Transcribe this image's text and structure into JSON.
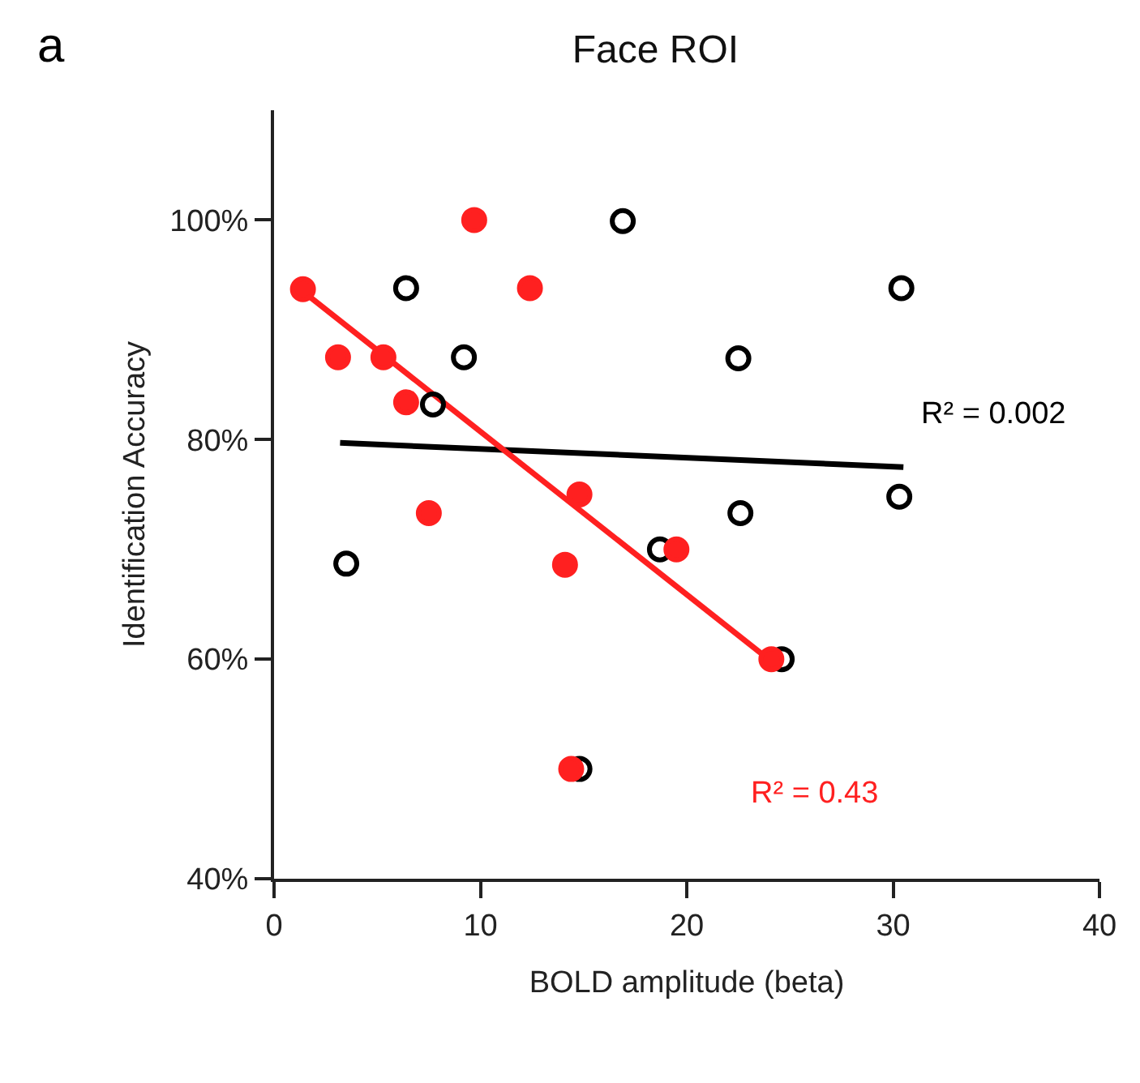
{
  "chart_data": {
    "type": "scatter",
    "title": "Face ROI",
    "xlabel": "BOLD amplitude (beta)",
    "ylabel": "Identification Accuracy",
    "annotations": [
      "a",
      "R² = 0.002",
      "R² = 0.43"
    ],
    "xlim": [
      0,
      40
    ],
    "xticks": [
      0,
      10,
      20,
      30,
      40
    ],
    "ylim": [
      40,
      110
    ],
    "yticks": [
      {
        "value": 40,
        "label": "40%"
      },
      {
        "value": 60,
        "label": "60%"
      },
      {
        "value": 80,
        "label": "80%"
      },
      {
        "value": 100,
        "label": "100%"
      }
    ],
    "grid": false,
    "series": [
      {
        "color": "#000000",
        "marker": "circle-open",
        "x": [
          6.4,
          16.9,
          30.4,
          9.2,
          22.5,
          7.7,
          30.3,
          22.6,
          3.5,
          18.7,
          24.6,
          14.8
        ],
        "values": [
          93.8,
          99.9,
          93.8,
          87.5,
          87.4,
          83.2,
          74.8,
          73.3,
          68.7,
          70,
          60,
          50
        ]
      },
      {
        "color": "#ff2020",
        "marker": "circle",
        "x": [
          1.4,
          9.7,
          12.4,
          3.1,
          5.3,
          6.4,
          7.5,
          14.8,
          14.1,
          19.5,
          24.1,
          14.4
        ],
        "values": [
          93.7,
          100,
          93.8,
          87.5,
          87.5,
          83.4,
          73.3,
          75,
          68.6,
          70,
          60,
          50
        ]
      },
      {
        "type": "line",
        "color": "#000000",
        "marker": "none",
        "x": [
          3.2,
          30.5
        ],
        "values": [
          79.7,
          77.5
        ]
      },
      {
        "type": "line",
        "color": "#ff2020",
        "marker": "none",
        "x": [
          1.4,
          24.3
        ],
        "values": [
          93.5,
          59.5
        ]
      }
    ]
  }
}
